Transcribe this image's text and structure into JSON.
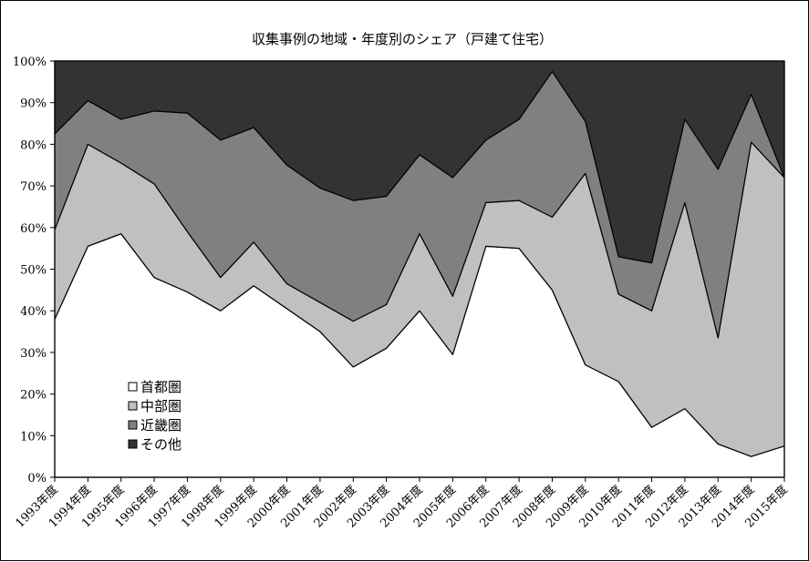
{
  "chart_data": {
    "type": "area",
    "stacked": true,
    "title": "収集事例の地域・年度別のシェア（戸建て住宅）",
    "xlabel": "",
    "ylabel": "",
    "ylim": [
      0,
      100
    ],
    "yticks": [
      "0%",
      "10%",
      "20%",
      "30%",
      "40%",
      "50%",
      "60%",
      "70%",
      "80%",
      "90%",
      "100%"
    ],
    "legend_position": "lower-left-inside",
    "categories": [
      "1993年度",
      "1994年度",
      "1995年度",
      "1996年度",
      "1997年度",
      "1998年度",
      "1999年度",
      "2000年度",
      "2001年度",
      "2002年度",
      "2003年度",
      "2004年度",
      "2005年度",
      "2006年度",
      "2007年度",
      "2008年度",
      "2009年度",
      "2010年度",
      "2011年度",
      "2012年度",
      "2013年度",
      "2014年度",
      "2015年度"
    ],
    "series": [
      {
        "name": "首都圏",
        "color": "#ffffff",
        "values": [
          38,
          55.5,
          58.5,
          48,
          44.5,
          40,
          46,
          40.5,
          35,
          26.5,
          31,
          40,
          29.5,
          55.5,
          55,
          45,
          27,
          23,
          12,
          16.5,
          8,
          5,
          7.5
        ]
      },
      {
        "name": "中部圏",
        "color": "#c0c0c0",
        "values": [
          21.5,
          24.5,
          17,
          22.5,
          14.5,
          8,
          10.5,
          6,
          7,
          11,
          10.5,
          18.5,
          14,
          10.5,
          11.5,
          17.5,
          46,
          21,
          28,
          49.5,
          25.5,
          75.5,
          64.5
        ]
      },
      {
        "name": "近畿圏",
        "color": "#808080",
        "values": [
          23,
          10.5,
          10.5,
          17.5,
          28.5,
          33,
          27.5,
          28.5,
          27.5,
          29,
          26,
          19,
          28.5,
          15,
          19.5,
          35,
          12.5,
          9,
          11.5,
          20,
          40.5,
          11.5,
          0
        ]
      },
      {
        "name": "その他",
        "color": "#333333",
        "values": [
          17.5,
          9.5,
          14,
          12,
          12.5,
          19,
          16,
          25,
          30.5,
          33.5,
          32.5,
          22.5,
          28,
          19,
          14,
          2.5,
          14.5,
          47,
          48.5,
          14,
          26,
          8,
          28
        ]
      }
    ]
  }
}
